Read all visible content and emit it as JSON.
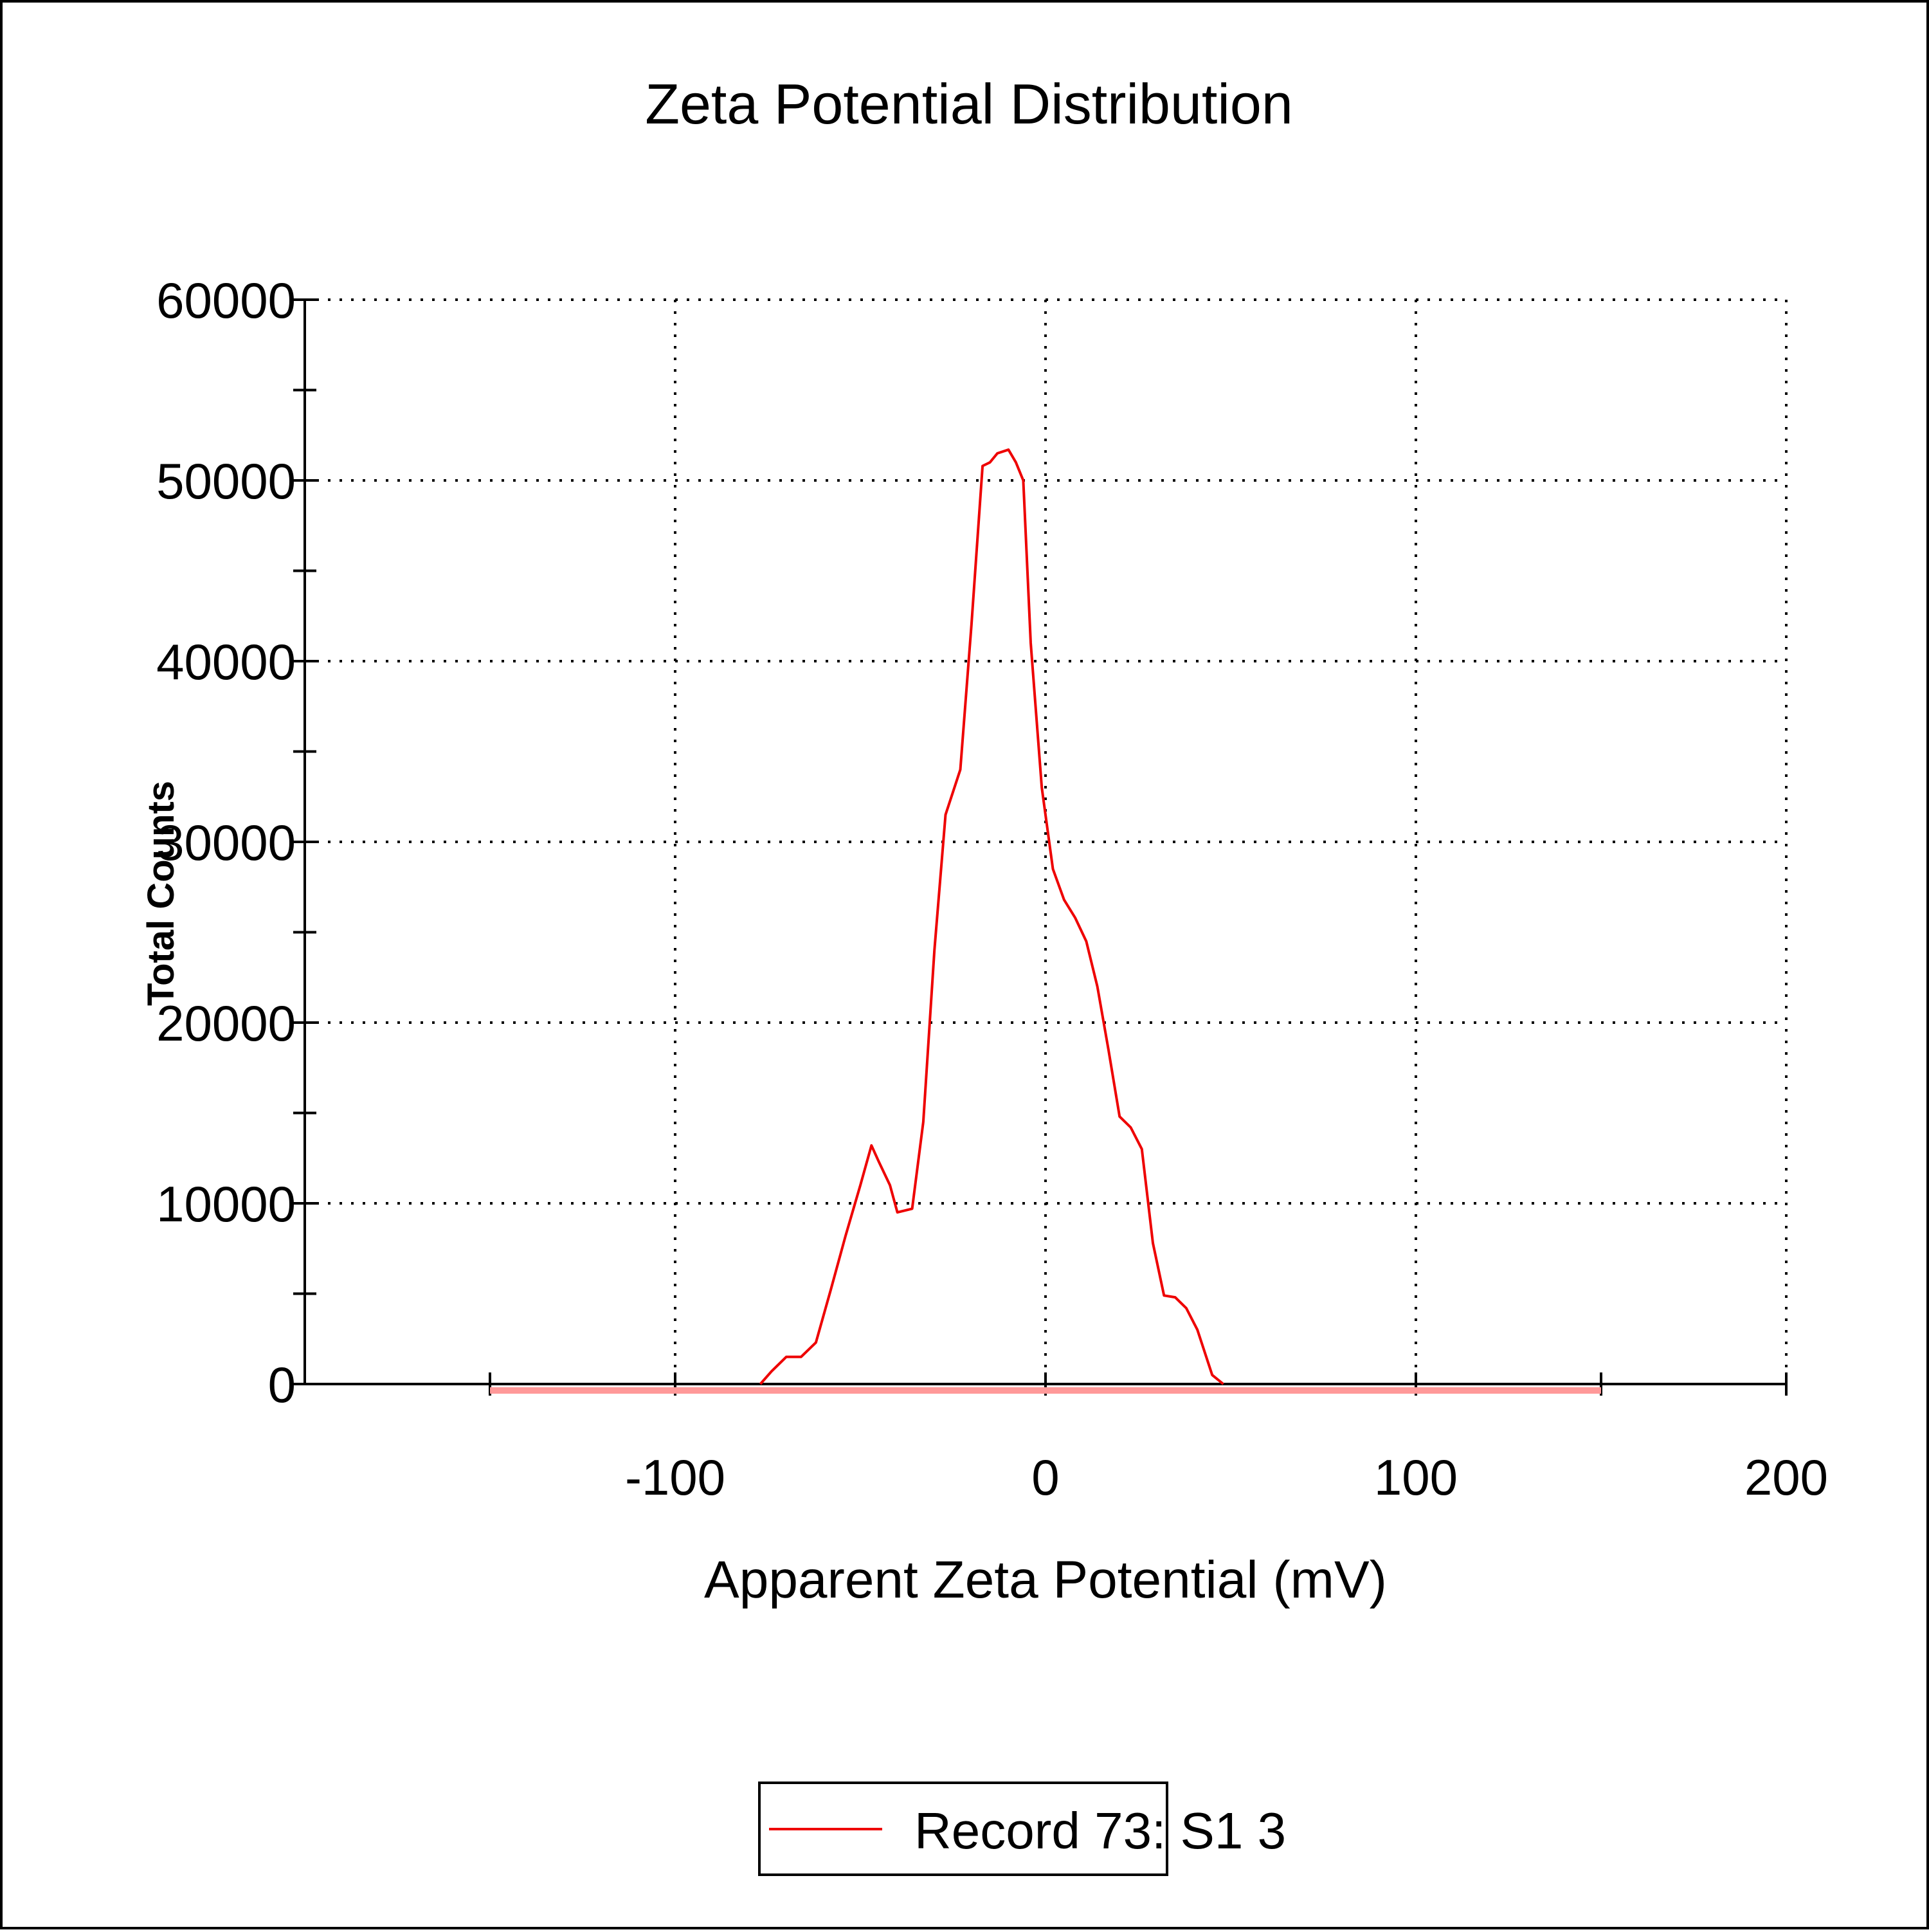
{
  "chart_data": {
    "type": "line",
    "title": "Zeta Potential Distribution",
    "xlabel": "Apparent Zeta Potential (mV)",
    "ylabel": "Total Counts",
    "xlim": [
      -200,
      200
    ],
    "ylim": [
      0,
      60000
    ],
    "x_ticks": [
      "-100",
      "0",
      "100",
      "200"
    ],
    "x_tick_values": [
      -100,
      0,
      100,
      200
    ],
    "x_minor_tick_values": [
      -150,
      150
    ],
    "y_ticks": [
      "0",
      "10000",
      "20000",
      "30000",
      "40000",
      "50000",
      "60000"
    ],
    "y_tick_values": [
      0,
      10000,
      20000,
      30000,
      40000,
      50000,
      60000
    ],
    "y_minor_tick_values": [
      5000,
      15000,
      25000,
      35000,
      45000,
      55000
    ],
    "grid": true,
    "legend_position": "bottom-center",
    "baseline_range": [
      -150,
      150
    ],
    "baseline_color": "#ff9999",
    "series": [
      {
        "name": "Record 73: S1 3",
        "color": "#ee0000",
        "points": [
          [
            -77,
            0
          ],
          [
            -74,
            700
          ],
          [
            -70,
            1500
          ],
          [
            -66,
            1500
          ],
          [
            -62,
            2300
          ],
          [
            -58,
            5200
          ],
          [
            -54,
            8200
          ],
          [
            -50,
            11000
          ],
          [
            -47,
            13200
          ],
          [
            -45,
            12300
          ],
          [
            -42,
            11000
          ],
          [
            -40,
            9500
          ],
          [
            -36,
            9700
          ],
          [
            -33,
            14500
          ],
          [
            -30,
            24000
          ],
          [
            -27,
            31500
          ],
          [
            -23,
            34000
          ],
          [
            -20,
            42000
          ],
          [
            -17,
            50800
          ],
          [
            -15,
            51000
          ],
          [
            -13,
            51500
          ],
          [
            -10,
            51700
          ],
          [
            -8,
            51000
          ],
          [
            -6,
            50000
          ],
          [
            -4,
            41000
          ],
          [
            -1,
            33000
          ],
          [
            2,
            28500
          ],
          [
            5,
            26800
          ],
          [
            8,
            25800
          ],
          [
            11,
            24500
          ],
          [
            14,
            22000
          ],
          [
            17,
            18500
          ],
          [
            20,
            14800
          ],
          [
            23,
            14200
          ],
          [
            26,
            13000
          ],
          [
            29,
            7800
          ],
          [
            32,
            4900
          ],
          [
            35,
            4800
          ],
          [
            38,
            4200
          ],
          [
            41,
            3000
          ],
          [
            45,
            500
          ],
          [
            48,
            0
          ]
        ]
      }
    ]
  }
}
